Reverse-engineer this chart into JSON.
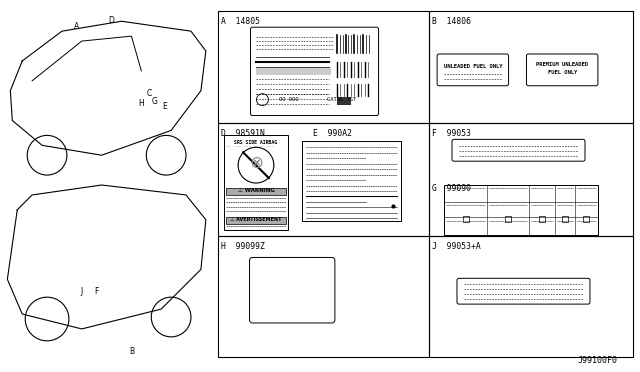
{
  "bg_color": "#ffffff",
  "line_color": "#000000",
  "grid_color": "#555555",
  "title": "J99100F0",
  "panel_border_color": "#333333",
  "sections": [
    {
      "label": "A  14805",
      "col": 0,
      "row": 0,
      "colspan": 1,
      "rowspan": 1
    },
    {
      "label": "B  14806",
      "col": 1,
      "row": 0,
      "colspan": 1,
      "rowspan": 1
    },
    {
      "label": "D  98591N",
      "col": 0,
      "row": 1,
      "colspan": 1,
      "rowspan": 1
    },
    {
      "label": "E  990A2",
      "col": 0,
      "row": 1,
      "colspan": 1,
      "rowspan": 1
    },
    {
      "label": "F  99053",
      "col": 1,
      "row": 1,
      "colspan": 1,
      "rowspan": 1
    },
    {
      "label": "G  99090",
      "col": 1,
      "row": 1,
      "colspan": 1,
      "rowspan": 1
    },
    {
      "label": "H  99099Z",
      "col": 0,
      "row": 2,
      "colspan": 1,
      "rowspan": 1
    },
    {
      "label": "J  99053+A",
      "col": 1,
      "row": 2,
      "colspan": 1,
      "rowspan": 1
    }
  ]
}
